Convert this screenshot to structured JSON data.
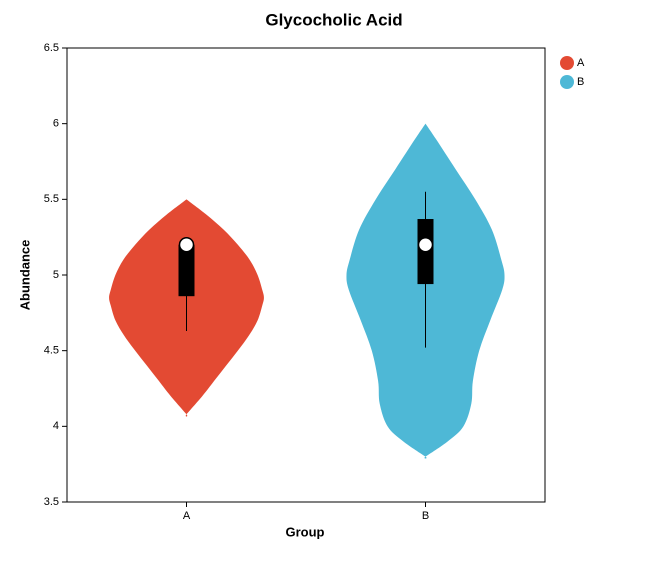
{
  "chart_data": {
    "type": "violin",
    "title": "Glycocholic Acid",
    "x_label": "Group",
    "y_label": "Abundance",
    "categories": [
      "A",
      "B"
    ],
    "ylim": [
      3.5,
      6.5
    ],
    "yticks": [
      3.5,
      4,
      4.5,
      5,
      5.5,
      6,
      6.5
    ],
    "legend": "top-right",
    "series": [
      {
        "name": "A",
        "color": "#e34a33",
        "violin": {
          "y": [
            5.5,
            5.4,
            5.3,
            5.2,
            5.1,
            5.0,
            4.9,
            4.85,
            4.8,
            4.7,
            4.6,
            4.5,
            4.4,
            4.3,
            4.2,
            4.08
          ],
          "density": [
            0,
            0.25,
            0.47,
            0.65,
            0.8,
            0.9,
            0.96,
            0.98,
            0.96,
            0.9,
            0.79,
            0.65,
            0.5,
            0.35,
            0.2,
            0
          ]
        },
        "box": {
          "whisker_low": 4.63,
          "q1": 4.86,
          "median": 5.2,
          "q3": 5.2,
          "whisker_high": 5.2
        }
      },
      {
        "name": "B",
        "color": "#4eb8d6",
        "violin": {
          "y": [
            6.0,
            5.9,
            5.7,
            5.5,
            5.3,
            5.1,
            5.0,
            4.9,
            4.7,
            4.5,
            4.3,
            4.15,
            4.0,
            3.9,
            3.8
          ],
          "density": [
            0,
            0.13,
            0.38,
            0.63,
            0.84,
            0.96,
            1.0,
            0.97,
            0.82,
            0.68,
            0.6,
            0.58,
            0.48,
            0.28,
            0
          ]
        },
        "box": {
          "whisker_low": 4.52,
          "q1": 4.94,
          "median": 5.2,
          "q3": 5.37,
          "whisker_high": 5.55
        }
      }
    ]
  }
}
